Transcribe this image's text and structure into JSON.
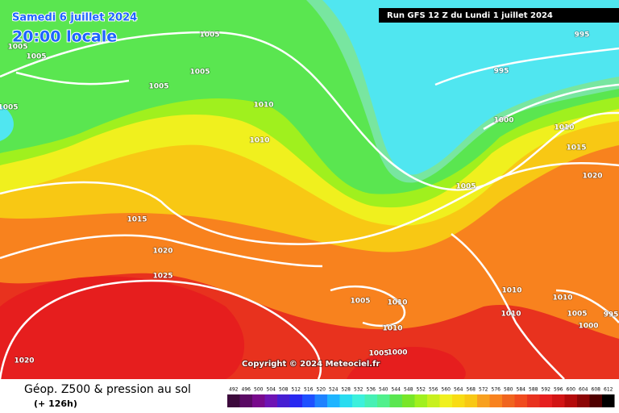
{
  "header": {
    "date": "Samedi 6 juillet 2024",
    "time": "20:00 locale",
    "run": "Run GFS 12 Z du Lundi 1 juillet 2024"
  },
  "copyright": "Copyright © 2024 Meteociel.fr",
  "isobar_labels": [
    1005,
    1005,
    1005,
    1005,
    1005,
    1005,
    1010,
    1010,
    995,
    995,
    1000,
    1010,
    1015,
    1020,
    1005,
    1015,
    1020,
    1025,
    1005,
    1010,
    1010,
    1010,
    1010,
    1005,
    1000,
    1010,
    1005,
    1000,
    1020,
    995
  ],
  "legend": {
    "title": "Géop. Z500 & pression au sol",
    "lead": "(+ 126h)",
    "levels": [
      492,
      496,
      500,
      504,
      508,
      512,
      516,
      520,
      524,
      528,
      532,
      536,
      540,
      544,
      548,
      552,
      556,
      560,
      564,
      568,
      572,
      576,
      580,
      584,
      588,
      592,
      596,
      600,
      604,
      608,
      612
    ],
    "colors": [
      "#3c0a3c",
      "#5a0a64",
      "#780a8c",
      "#6e14b4",
      "#461ed2",
      "#2828f0",
      "#1e50ff",
      "#1e82ff",
      "#1eb4ff",
      "#28dcf0",
      "#3cf0dc",
      "#46f0b4",
      "#50f08c",
      "#5ae650",
      "#78e628",
      "#a0f01e",
      "#c8f01e",
      "#f0f01e",
      "#f8dc14",
      "#f8c814",
      "#f8a01e",
      "#f8821e",
      "#f0641e",
      "#f04b1e",
      "#e8321e",
      "#e61e1e",
      "#d21414",
      "#b40a0a",
      "#8c0505",
      "#500000",
      "#000000"
    ]
  }
}
